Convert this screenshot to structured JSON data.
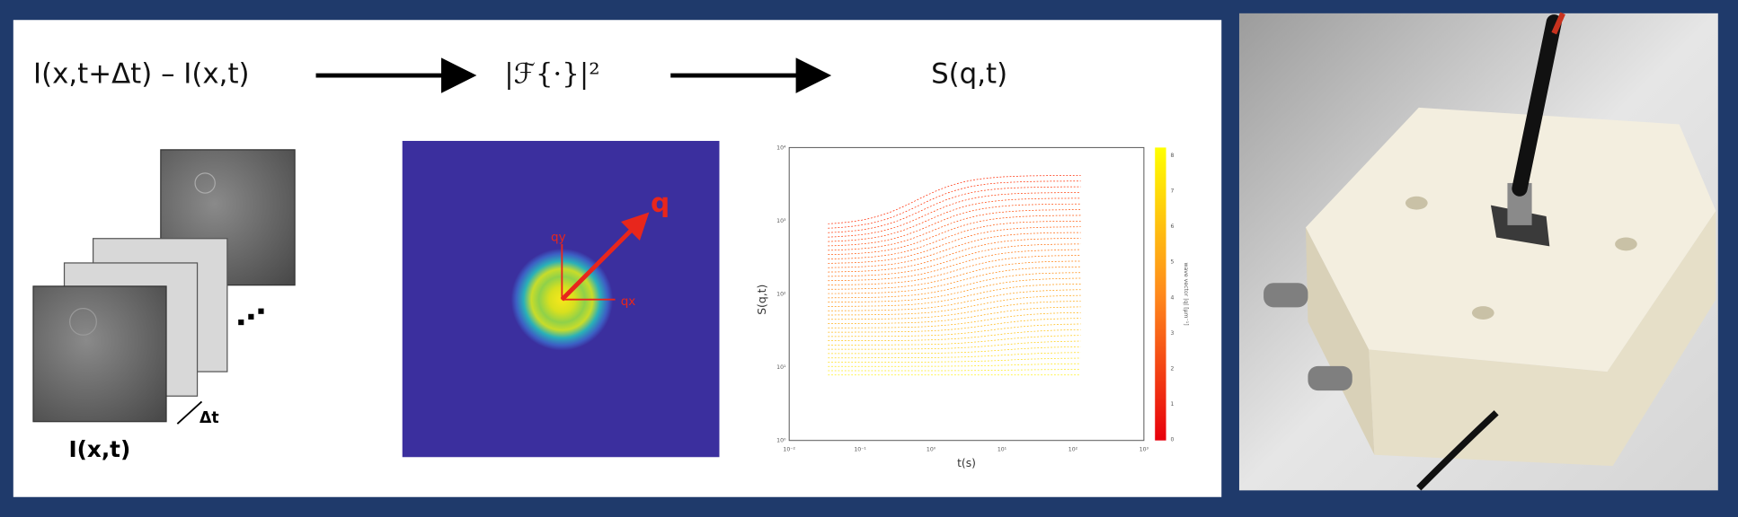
{
  "pipeline": {
    "step1": "I(x,t+Δt) – I(x,t)",
    "step2": "|ℱ{·}|²",
    "step3": "S(q,t)"
  },
  "image_stack": {
    "label": "I(x,t)",
    "delta": "Δt"
  },
  "fourier": {
    "q": "q",
    "qy": "qy",
    "qx": "qx"
  },
  "plot": {
    "ylabel": "S(q,t)",
    "xlabel": "t(s)",
    "xtick_labels": [
      "10⁻²",
      "10⁻¹",
      "10⁰",
      "10¹",
      "10²",
      "10³"
    ],
    "ytick_labels": [
      "10⁴",
      "10³",
      "10²",
      "10¹",
      "10⁰"
    ],
    "colorbar_label": "wave vector |q| [μm⁻¹]",
    "colorbar_tick_labels": [
      "8",
      "7",
      "6",
      "5",
      "4",
      "3",
      "2",
      "1",
      "0"
    ]
  }
}
